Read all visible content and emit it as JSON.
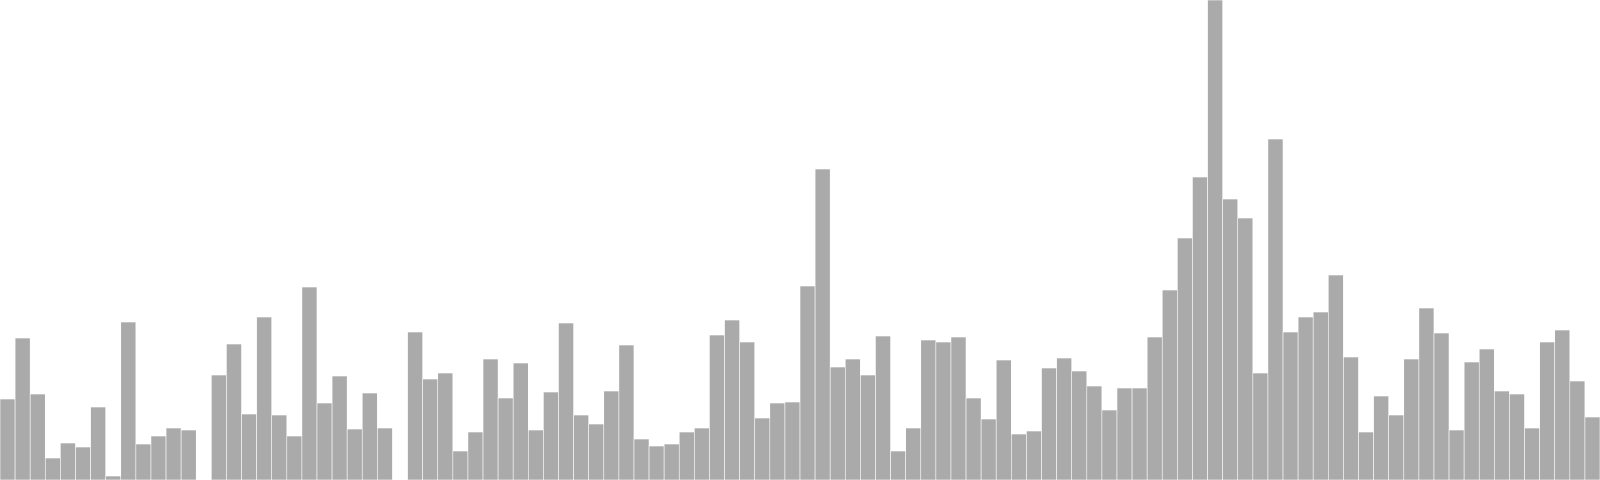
{
  "chart_data": {
    "type": "bar",
    "bar_color": "#aaaaaa",
    "background": "#ffffff",
    "grid": false,
    "legend": "none",
    "title": "",
    "xlabel": "",
    "ylabel": "",
    "ylim": [
      0,
      480
    ],
    "values": [
      81,
      142,
      86,
      22,
      37,
      33,
      73,
      4,
      158,
      36,
      44,
      52,
      50,
      0,
      105,
      136,
      66,
      163,
      65,
      44,
      193,
      77,
      104,
      51,
      87,
      52,
      0,
      148,
      101,
      107,
      29,
      48,
      121,
      82,
      117,
      50,
      88,
      157,
      65,
      56,
      89,
      135,
      41,
      34,
      36,
      48,
      52,
      145,
      160,
      138,
      62,
      77,
      78,
      194,
      311,
      113,
      121,
      105,
      144,
      29,
      52,
      140,
      138,
      143,
      82,
      61,
      120,
      46,
      49,
      112,
      122,
      109,
      94,
      70,
      92,
      92,
      143,
      190,
      242,
      303,
      480,
      281,
      262,
      107,
      341,
      148,
      163,
      168,
      205,
      123,
      48,
      84,
      65,
      121,
      172,
      147,
      50,
      118,
      131,
      89,
      86,
      52,
      138,
      150,
      99,
      63
    ]
  }
}
